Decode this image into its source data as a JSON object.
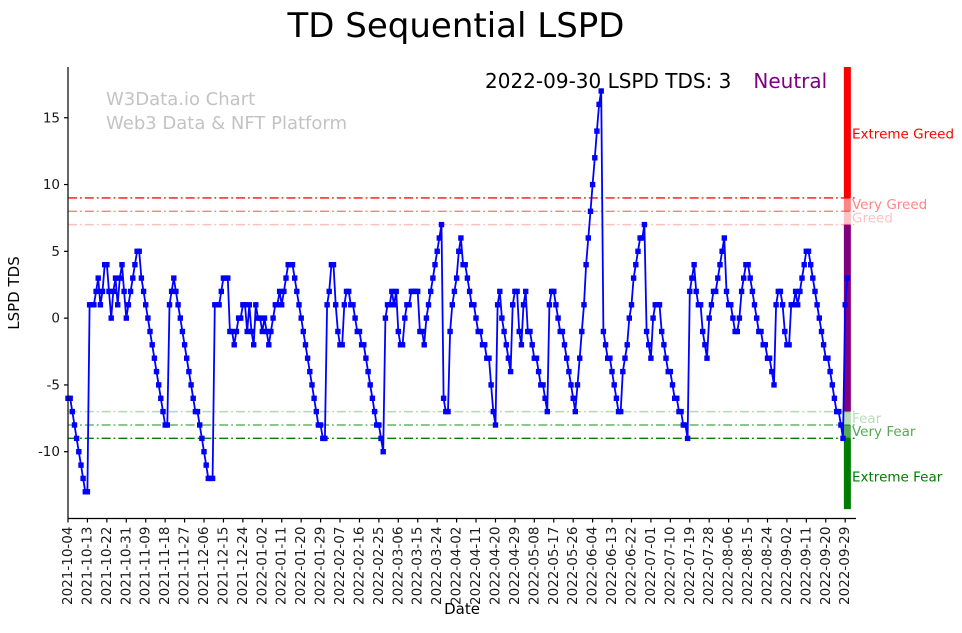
{
  "title": "TD Sequential LSPD",
  "watermark": {
    "line1": "W3Data.io Chart",
    "line2": "Web3 Data & NFT Platform"
  },
  "annotation": {
    "text": "2022-09-30 LSPD TDS: 3",
    "status": "Neutral",
    "status_color": "#800080"
  },
  "chart_data": {
    "type": "line",
    "title": "TD Sequential LSPD",
    "xlabel": "Date",
    "ylabel": "LSPD TDS",
    "series_name": "LSPD TDS",
    "line_color": "#0000ff",
    "marker": "square",
    "grid": false,
    "legend": "none",
    "ylim": [
      -15,
      18.8
    ],
    "xlim_days": [
      0,
      365
    ],
    "x_start_date": "2021-10-04",
    "x_end_date": "2022-09-30",
    "last_value": 3,
    "last_date": "2022-09-30",
    "y_ticks": [
      -10,
      -5,
      0,
      5,
      10,
      15
    ],
    "x_tick_days": [
      0,
      9,
      18,
      27,
      36,
      45,
      54,
      63,
      72,
      81,
      90,
      99,
      108,
      117,
      126,
      135,
      144,
      153,
      162,
      171,
      180,
      189,
      198,
      207,
      216,
      225,
      234,
      243,
      252,
      261,
      270,
      279,
      288,
      297,
      306,
      315,
      324,
      333,
      342,
      351,
      360
    ],
    "x_tick_labels": [
      "2021-10-04",
      "2021-10-13",
      "2021-10-22",
      "2021-10-31",
      "2021-11-09",
      "2021-11-18",
      "2021-11-27",
      "2021-12-06",
      "2021-12-15",
      "2021-12-24",
      "2022-01-02",
      "2022-01-11",
      "2022-01-20",
      "2022-01-29",
      "2022-02-07",
      "2022-02-16",
      "2022-02-25",
      "2022-03-06",
      "2022-03-15",
      "2022-03-24",
      "2022-04-02",
      "2022-04-11",
      "2022-04-20",
      "2022-04-29",
      "2022-05-08",
      "2022-05-17",
      "2022-05-26",
      "2022-06-04",
      "2022-06-13",
      "2022-06-22",
      "2022-07-01",
      "2022-07-10",
      "2022-07-19",
      "2022-07-28",
      "2022-08-06",
      "2022-08-15",
      "2022-08-24",
      "2022-09-02",
      "2022-09-11",
      "2022-09-20",
      "2022-09-29"
    ],
    "thresholds": [
      {
        "value": 9,
        "name": "extreme-greed-line",
        "color": "#ff0000",
        "opacity": 0.95
      },
      {
        "value": 8,
        "name": "very-greed-line",
        "color": "#ff0000",
        "opacity": 0.5
      },
      {
        "value": 7,
        "name": "greed-line",
        "color": "#ff0000",
        "opacity": 0.25
      },
      {
        "value": -7,
        "name": "fear-line",
        "color": "#008000",
        "opacity": 0.3
      },
      {
        "value": -8,
        "name": "very-fear-line",
        "color": "#008000",
        "opacity": 0.6
      },
      {
        "value": -9,
        "name": "extreme-fear-line",
        "color": "#008000",
        "opacity": 1.0
      }
    ],
    "zones": [
      {
        "label": "Extreme Greed",
        "from": 9,
        "to": 18.8,
        "color": "#ff0000"
      },
      {
        "label": "Very Greed",
        "from": 8,
        "to": 9,
        "color": "#ff8585"
      },
      {
        "label": "Greed",
        "from": 7,
        "to": 8,
        "color": "#ffc2c2"
      },
      {
        "label": "Neutral",
        "from": -7,
        "to": 7,
        "color": "#800080"
      },
      {
        "label": "Fear",
        "from": -8,
        "to": -7,
        "color": "#b8dcb8"
      },
      {
        "label": "Very Fear",
        "from": -9,
        "to": -8,
        "color": "#55a855"
      },
      {
        "label": "Extreme Fear",
        "from": -14.3,
        "to": -9,
        "color": "#007d00"
      }
    ],
    "level_labels": [
      {
        "text": "Extreme Greed",
        "color": "#ff0000",
        "v": 13.8
      },
      {
        "text": "Very Greed",
        "color": "#ff8585",
        "v": 8.5
      },
      {
        "text": "Greed",
        "color": "#ffc2c2",
        "v": 7.5
      },
      {
        "text": "Fear",
        "color": "#b8dcb8",
        "v": -7.5
      },
      {
        "text": "Very Fear",
        "color": "#55a855",
        "v": -8.5
      },
      {
        "text": "Extreme Fear",
        "color": "#007d00",
        "v": -11.9
      }
    ],
    "points": [
      [
        0,
        -6
      ],
      [
        1,
        -6
      ],
      [
        2,
        -7
      ],
      [
        3,
        -8
      ],
      [
        4,
        -9
      ],
      [
        5,
        -10
      ],
      [
        6,
        -11
      ],
      [
        7,
        -12
      ],
      [
        8,
        -13
      ],
      [
        9,
        -13
      ],
      [
        10,
        1
      ],
      [
        11,
        1
      ],
      [
        12,
        1
      ],
      [
        13,
        2
      ],
      [
        14,
        3
      ],
      [
        15,
        1
      ],
      [
        16,
        2
      ],
      [
        17,
        4
      ],
      [
        18,
        4
      ],
      [
        19,
        2
      ],
      [
        20,
        0
      ],
      [
        21,
        2
      ],
      [
        22,
        3
      ],
      [
        23,
        1
      ],
      [
        24,
        3
      ],
      [
        25,
        4
      ],
      [
        26,
        2
      ],
      [
        27,
        0
      ],
      [
        28,
        1
      ],
      [
        29,
        2
      ],
      [
        30,
        3
      ],
      [
        31,
        4
      ],
      [
        32,
        5
      ],
      [
        33,
        5
      ],
      [
        34,
        3
      ],
      [
        35,
        2
      ],
      [
        36,
        1
      ],
      [
        37,
        0
      ],
      [
        38,
        -1
      ],
      [
        39,
        -2
      ],
      [
        40,
        -3
      ],
      [
        41,
        -4
      ],
      [
        42,
        -5
      ],
      [
        43,
        -6
      ],
      [
        44,
        -7
      ],
      [
        45,
        -8
      ],
      [
        46,
        -8
      ],
      [
        47,
        1
      ],
      [
        48,
        2
      ],
      [
        49,
        3
      ],
      [
        50,
        2
      ],
      [
        51,
        1
      ],
      [
        52,
        0
      ],
      [
        53,
        -1
      ],
      [
        54,
        -2
      ],
      [
        55,
        -3
      ],
      [
        56,
        -4
      ],
      [
        57,
        -5
      ],
      [
        58,
        -6
      ],
      [
        59,
        -7
      ],
      [
        60,
        -7
      ],
      [
        61,
        -8
      ],
      [
        62,
        -9
      ],
      [
        63,
        -10
      ],
      [
        64,
        -11
      ],
      [
        65,
        -12
      ],
      [
        66,
        -12
      ],
      [
        67,
        -12
      ],
      [
        68,
        1
      ],
      [
        69,
        1
      ],
      [
        70,
        1
      ],
      [
        71,
        2
      ],
      [
        72,
        3
      ],
      [
        73,
        3
      ],
      [
        74,
        3
      ],
      [
        75,
        -1
      ],
      [
        76,
        -1
      ],
      [
        77,
        -2
      ],
      [
        78,
        -1
      ],
      [
        79,
        0
      ],
      [
        80,
        0
      ],
      [
        81,
        1
      ],
      [
        82,
        1
      ],
      [
        83,
        -1
      ],
      [
        84,
        1
      ],
      [
        85,
        -1
      ],
      [
        86,
        -2
      ],
      [
        87,
        1
      ],
      [
        88,
        0
      ],
      [
        89,
        0
      ],
      [
        90,
        -1
      ],
      [
        91,
        0
      ],
      [
        92,
        -1
      ],
      [
        93,
        -2
      ],
      [
        94,
        -1
      ],
      [
        95,
        0
      ],
      [
        96,
        1
      ],
      [
        97,
        1
      ],
      [
        98,
        2
      ],
      [
        99,
        1
      ],
      [
        100,
        2
      ],
      [
        101,
        3
      ],
      [
        102,
        4
      ],
      [
        103,
        4
      ],
      [
        104,
        4
      ],
      [
        105,
        3
      ],
      [
        106,
        2
      ],
      [
        107,
        1
      ],
      [
        108,
        0
      ],
      [
        109,
        -1
      ],
      [
        110,
        -2
      ],
      [
        111,
        -3
      ],
      [
        112,
        -4
      ],
      [
        113,
        -5
      ],
      [
        114,
        -6
      ],
      [
        115,
        -7
      ],
      [
        116,
        -8
      ],
      [
        117,
        -8
      ],
      [
        118,
        -9
      ],
      [
        119,
        -9
      ],
      [
        120,
        1
      ],
      [
        121,
        2
      ],
      [
        122,
        4
      ],
      [
        123,
        4
      ],
      [
        124,
        1
      ],
      [
        125,
        -1
      ],
      [
        126,
        -2
      ],
      [
        127,
        -2
      ],
      [
        128,
        1
      ],
      [
        129,
        2
      ],
      [
        130,
        2
      ],
      [
        131,
        1
      ],
      [
        132,
        1
      ],
      [
        133,
        0
      ],
      [
        134,
        -1
      ],
      [
        135,
        -1
      ],
      [
        136,
        -2
      ],
      [
        137,
        -2
      ],
      [
        138,
        -3
      ],
      [
        139,
        -4
      ],
      [
        140,
        -5
      ],
      [
        141,
        -6
      ],
      [
        142,
        -7
      ],
      [
        143,
        -8
      ],
      [
        144,
        -8
      ],
      [
        145,
        -9
      ],
      [
        146,
        -10
      ],
      [
        147,
        0
      ],
      [
        148,
        1
      ],
      [
        149,
        1
      ],
      [
        150,
        2
      ],
      [
        151,
        1
      ],
      [
        152,
        2
      ],
      [
        153,
        -1
      ],
      [
        154,
        -2
      ],
      [
        155,
        -2
      ],
      [
        156,
        0
      ],
      [
        157,
        1
      ],
      [
        158,
        1
      ],
      [
        159,
        2
      ],
      [
        160,
        2
      ],
      [
        161,
        2
      ],
      [
        162,
        2
      ],
      [
        163,
        -1
      ],
      [
        164,
        -1
      ],
      [
        165,
        -2
      ],
      [
        166,
        0
      ],
      [
        167,
        1
      ],
      [
        168,
        2
      ],
      [
        169,
        3
      ],
      [
        170,
        4
      ],
      [
        171,
        5
      ],
      [
        172,
        6
      ],
      [
        173,
        7
      ],
      [
        174,
        -6
      ],
      [
        175,
        -7
      ],
      [
        176,
        -7
      ],
      [
        177,
        -1
      ],
      [
        178,
        1
      ],
      [
        179,
        2
      ],
      [
        180,
        3
      ],
      [
        181,
        5
      ],
      [
        182,
        6
      ],
      [
        183,
        4
      ],
      [
        184,
        4
      ],
      [
        185,
        3
      ],
      [
        186,
        2
      ],
      [
        187,
        1
      ],
      [
        188,
        1
      ],
      [
        189,
        0
      ],
      [
        190,
        -1
      ],
      [
        191,
        -1
      ],
      [
        192,
        -2
      ],
      [
        193,
        -2
      ],
      [
        194,
        -3
      ],
      [
        195,
        -3
      ],
      [
        196,
        -5
      ],
      [
        197,
        -7
      ],
      [
        198,
        -8
      ],
      [
        199,
        1
      ],
      [
        200,
        2
      ],
      [
        201,
        0
      ],
      [
        202,
        -1
      ],
      [
        203,
        -2
      ],
      [
        204,
        -3
      ],
      [
        205,
        -4
      ],
      [
        206,
        1
      ],
      [
        207,
        2
      ],
      [
        208,
        2
      ],
      [
        209,
        -1
      ],
      [
        210,
        -2
      ],
      [
        211,
        1
      ],
      [
        212,
        2
      ],
      [
        213,
        -1
      ],
      [
        214,
        -1
      ],
      [
        215,
        -2
      ],
      [
        216,
        -3
      ],
      [
        217,
        -3
      ],
      [
        218,
        -4
      ],
      [
        219,
        -5
      ],
      [
        220,
        -5
      ],
      [
        221,
        -6
      ],
      [
        222,
        -7
      ],
      [
        223,
        1
      ],
      [
        224,
        2
      ],
      [
        225,
        2
      ],
      [
        226,
        1
      ],
      [
        227,
        0
      ],
      [
        228,
        -1
      ],
      [
        229,
        -1
      ],
      [
        230,
        -2
      ],
      [
        231,
        -3
      ],
      [
        232,
        -4
      ],
      [
        233,
        -5
      ],
      [
        234,
        -6
      ],
      [
        235,
        -7
      ],
      [
        236,
        -5
      ],
      [
        237,
        -3
      ],
      [
        238,
        -1
      ],
      [
        239,
        1
      ],
      [
        240,
        4
      ],
      [
        241,
        6
      ],
      [
        242,
        8
      ],
      [
        243,
        10
      ],
      [
        244,
        12
      ],
      [
        245,
        14
      ],
      [
        246,
        16
      ],
      [
        247,
        17
      ],
      [
        248,
        -1
      ],
      [
        249,
        -2
      ],
      [
        250,
        -3
      ],
      [
        251,
        -3
      ],
      [
        252,
        -4
      ],
      [
        253,
        -5
      ],
      [
        254,
        -6
      ],
      [
        255,
        -7
      ],
      [
        256,
        -7
      ],
      [
        257,
        -4
      ],
      [
        258,
        -3
      ],
      [
        259,
        -2
      ],
      [
        260,
        0
      ],
      [
        261,
        1
      ],
      [
        262,
        3
      ],
      [
        263,
        4
      ],
      [
        264,
        5
      ],
      [
        265,
        6
      ],
      [
        266,
        6
      ],
      [
        267,
        7
      ],
      [
        268,
        -1
      ],
      [
        269,
        -2
      ],
      [
        270,
        -3
      ],
      [
        271,
        0
      ],
      [
        272,
        1
      ],
      [
        273,
        1
      ],
      [
        274,
        1
      ],
      [
        275,
        -1
      ],
      [
        276,
        -2
      ],
      [
        277,
        -3
      ],
      [
        278,
        -4
      ],
      [
        279,
        -4
      ],
      [
        280,
        -5
      ],
      [
        281,
        -6
      ],
      [
        282,
        -6
      ],
      [
        283,
        -7
      ],
      [
        284,
        -7
      ],
      [
        285,
        -8
      ],
      [
        286,
        -8
      ],
      [
        287,
        -9
      ],
      [
        288,
        2
      ],
      [
        289,
        3
      ],
      [
        290,
        4
      ],
      [
        291,
        2
      ],
      [
        292,
        1
      ],
      [
        293,
        1
      ],
      [
        294,
        -1
      ],
      [
        295,
        -2
      ],
      [
        296,
        -3
      ],
      [
        297,
        0
      ],
      [
        298,
        1
      ],
      [
        299,
        2
      ],
      [
        300,
        2
      ],
      [
        301,
        3
      ],
      [
        302,
        4
      ],
      [
        303,
        5
      ],
      [
        304,
        6
      ],
      [
        305,
        2
      ],
      [
        306,
        1
      ],
      [
        307,
        1
      ],
      [
        308,
        0
      ],
      [
        309,
        -1
      ],
      [
        310,
        -1
      ],
      [
        311,
        0
      ],
      [
        312,
        2
      ],
      [
        313,
        3
      ],
      [
        314,
        4
      ],
      [
        315,
        4
      ],
      [
        316,
        3
      ],
      [
        317,
        2
      ],
      [
        318,
        1
      ],
      [
        319,
        0
      ],
      [
        320,
        -1
      ],
      [
        321,
        -1
      ],
      [
        322,
        -2
      ],
      [
        323,
        -2
      ],
      [
        324,
        -3
      ],
      [
        325,
        -3
      ],
      [
        326,
        -4
      ],
      [
        327,
        -5
      ],
      [
        328,
        1
      ],
      [
        329,
        2
      ],
      [
        330,
        2
      ],
      [
        331,
        1
      ],
      [
        332,
        -1
      ],
      [
        333,
        -2
      ],
      [
        334,
        -2
      ],
      [
        335,
        1
      ],
      [
        336,
        1
      ],
      [
        337,
        2
      ],
      [
        338,
        1
      ],
      [
        339,
        2
      ],
      [
        340,
        3
      ],
      [
        341,
        4
      ],
      [
        342,
        5
      ],
      [
        343,
        5
      ],
      [
        344,
        4
      ],
      [
        345,
        3
      ],
      [
        346,
        2
      ],
      [
        347,
        1
      ],
      [
        348,
        0
      ],
      [
        349,
        -1
      ],
      [
        350,
        -2
      ],
      [
        351,
        -3
      ],
      [
        352,
        -3
      ],
      [
        353,
        -4
      ],
      [
        354,
        -5
      ],
      [
        355,
        -6
      ],
      [
        356,
        -7
      ],
      [
        357,
        -7
      ],
      [
        358,
        -8
      ],
      [
        359,
        -9
      ],
      [
        360,
        1
      ],
      [
        361,
        3
      ]
    ]
  }
}
